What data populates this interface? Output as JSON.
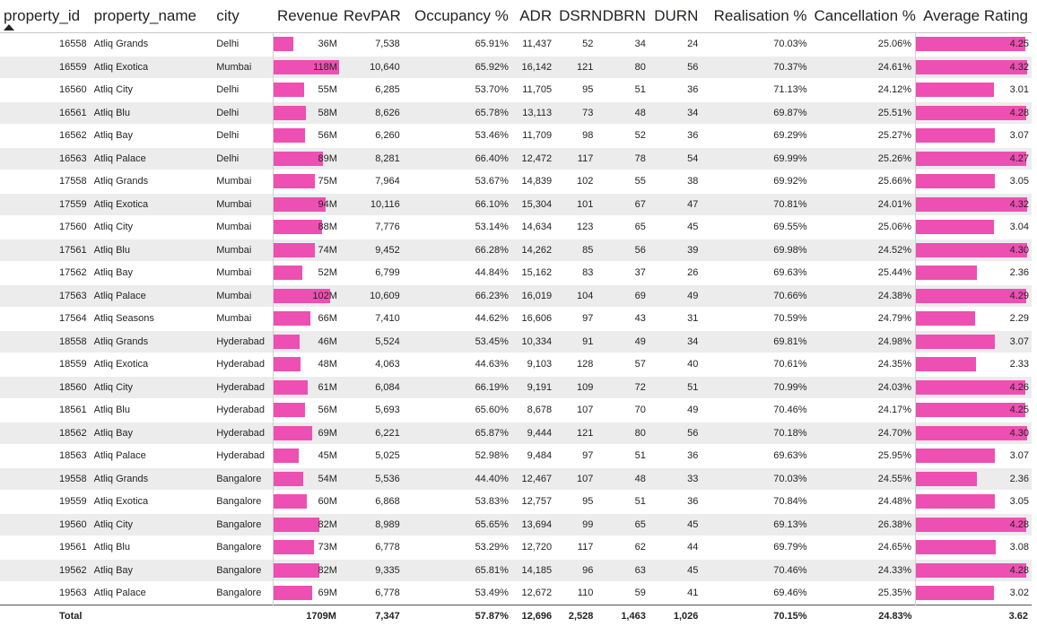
{
  "colors": {
    "bar": "#ee4fb3",
    "stripe": "#ececec"
  },
  "columns": {
    "property_id": "property_id",
    "property_name": "property_name",
    "city": "city",
    "revenue": "Revenue",
    "revpar": "RevPAR",
    "occupancy": "Occupancy %",
    "adr": "ADR",
    "dsrn": "DSRN",
    "dbrn": "DBRN",
    "durn": "DURN",
    "realisation": "Realisation %",
    "cancellation": "Cancellation %",
    "rating": "Average Rating"
  },
  "sort": {
    "column": "property_id",
    "direction": "ascending"
  },
  "rows": [
    {
      "id": "16558",
      "name": "Atliq Grands",
      "city": "Delhi",
      "revenue": "36M",
      "rev_m": 36,
      "revpar": "7,538",
      "occ": "65.91%",
      "adr": "11,437",
      "dsrn": "52",
      "dbrn": "34",
      "durn": "24",
      "real": "70.03%",
      "canc": "25.06%",
      "rating": "4.25"
    },
    {
      "id": "16559",
      "name": "Atliq Exotica",
      "city": "Mumbai",
      "revenue": "118M",
      "rev_m": 118,
      "revpar": "10,640",
      "occ": "65.92%",
      "adr": "16,142",
      "dsrn": "121",
      "dbrn": "80",
      "durn": "56",
      "real": "70.37%",
      "canc": "24.61%",
      "rating": "4.32"
    },
    {
      "id": "16560",
      "name": "Atliq City",
      "city": "Delhi",
      "revenue": "55M",
      "rev_m": 55,
      "revpar": "6,285",
      "occ": "53.70%",
      "adr": "11,705",
      "dsrn": "95",
      "dbrn": "51",
      "durn": "36",
      "real": "71.13%",
      "canc": "24.12%",
      "rating": "3.01"
    },
    {
      "id": "16561",
      "name": "Atliq Blu",
      "city": "Delhi",
      "revenue": "58M",
      "rev_m": 58,
      "revpar": "8,626",
      "occ": "65.78%",
      "adr": "13,113",
      "dsrn": "73",
      "dbrn": "48",
      "durn": "34",
      "real": "69.87%",
      "canc": "25.51%",
      "rating": "4.28"
    },
    {
      "id": "16562",
      "name": "Atliq Bay",
      "city": "Delhi",
      "revenue": "56M",
      "rev_m": 56,
      "revpar": "6,260",
      "occ": "53.46%",
      "adr": "11,709",
      "dsrn": "98",
      "dbrn": "52",
      "durn": "36",
      "real": "69.29%",
      "canc": "25.27%",
      "rating": "3.07"
    },
    {
      "id": "16563",
      "name": "Atliq Palace",
      "city": "Delhi",
      "revenue": "89M",
      "rev_m": 89,
      "revpar": "8,281",
      "occ": "66.40%",
      "adr": "12,472",
      "dsrn": "117",
      "dbrn": "78",
      "durn": "54",
      "real": "69.99%",
      "canc": "25.26%",
      "rating": "4.27"
    },
    {
      "id": "17558",
      "name": "Atliq Grands",
      "city": "Mumbai",
      "revenue": "75M",
      "rev_m": 75,
      "revpar": "7,964",
      "occ": "53.67%",
      "adr": "14,839",
      "dsrn": "102",
      "dbrn": "55",
      "durn": "38",
      "real": "69.92%",
      "canc": "25.66%",
      "rating": "3.05"
    },
    {
      "id": "17559",
      "name": "Atliq Exotica",
      "city": "Mumbai",
      "revenue": "94M",
      "rev_m": 94,
      "revpar": "10,116",
      "occ": "66.10%",
      "adr": "15,304",
      "dsrn": "101",
      "dbrn": "67",
      "durn": "47",
      "real": "70.81%",
      "canc": "24.01%",
      "rating": "4.32"
    },
    {
      "id": "17560",
      "name": "Atliq City",
      "city": "Mumbai",
      "revenue": "88M",
      "rev_m": 88,
      "revpar": "7,776",
      "occ": "53.14%",
      "adr": "14,634",
      "dsrn": "123",
      "dbrn": "65",
      "durn": "45",
      "real": "69.55%",
      "canc": "25.06%",
      "rating": "3.04"
    },
    {
      "id": "17561",
      "name": "Atliq Blu",
      "city": "Mumbai",
      "revenue": "74M",
      "rev_m": 74,
      "revpar": "9,452",
      "occ": "66.28%",
      "adr": "14,262",
      "dsrn": "85",
      "dbrn": "56",
      "durn": "39",
      "real": "69.98%",
      "canc": "24.52%",
      "rating": "4.30"
    },
    {
      "id": "17562",
      "name": "Atliq Bay",
      "city": "Mumbai",
      "revenue": "52M",
      "rev_m": 52,
      "revpar": "6,799",
      "occ": "44.84%",
      "adr": "15,162",
      "dsrn": "83",
      "dbrn": "37",
      "durn": "26",
      "real": "69.63%",
      "canc": "25.44%",
      "rating": "2.36"
    },
    {
      "id": "17563",
      "name": "Atliq Palace",
      "city": "Mumbai",
      "revenue": "102M",
      "rev_m": 102,
      "revpar": "10,609",
      "occ": "66.23%",
      "adr": "16,019",
      "dsrn": "104",
      "dbrn": "69",
      "durn": "49",
      "real": "70.66%",
      "canc": "24.38%",
      "rating": "4.29"
    },
    {
      "id": "17564",
      "name": "Atliq Seasons",
      "city": "Mumbai",
      "revenue": "66M",
      "rev_m": 66,
      "revpar": "7,410",
      "occ": "44.62%",
      "adr": "16,606",
      "dsrn": "97",
      "dbrn": "43",
      "durn": "31",
      "real": "70.59%",
      "canc": "24.79%",
      "rating": "2.29"
    },
    {
      "id": "18558",
      "name": "Atliq Grands",
      "city": "Hyderabad",
      "revenue": "46M",
      "rev_m": 46,
      "revpar": "5,524",
      "occ": "53.45%",
      "adr": "10,334",
      "dsrn": "91",
      "dbrn": "49",
      "durn": "34",
      "real": "69.81%",
      "canc": "24.98%",
      "rating": "3.07"
    },
    {
      "id": "18559",
      "name": "Atliq Exotica",
      "city": "Hyderabad",
      "revenue": "48M",
      "rev_m": 48,
      "revpar": "4,063",
      "occ": "44.63%",
      "adr": "9,103",
      "dsrn": "128",
      "dbrn": "57",
      "durn": "40",
      "real": "70.61%",
      "canc": "24.35%",
      "rating": "2.33"
    },
    {
      "id": "18560",
      "name": "Atliq City",
      "city": "Hyderabad",
      "revenue": "61M",
      "rev_m": 61,
      "revpar": "6,084",
      "occ": "66.19%",
      "adr": "9,191",
      "dsrn": "109",
      "dbrn": "72",
      "durn": "51",
      "real": "70.99%",
      "canc": "24.03%",
      "rating": "4.26"
    },
    {
      "id": "18561",
      "name": "Atliq Blu",
      "city": "Hyderabad",
      "revenue": "56M",
      "rev_m": 56,
      "revpar": "5,693",
      "occ": "65.60%",
      "adr": "8,678",
      "dsrn": "107",
      "dbrn": "70",
      "durn": "49",
      "real": "70.46%",
      "canc": "24.17%",
      "rating": "4.25"
    },
    {
      "id": "18562",
      "name": "Atliq Bay",
      "city": "Hyderabad",
      "revenue": "69M",
      "rev_m": 69,
      "revpar": "6,221",
      "occ": "65.87%",
      "adr": "9,444",
      "dsrn": "121",
      "dbrn": "80",
      "durn": "56",
      "real": "70.18%",
      "canc": "24.70%",
      "rating": "4.30"
    },
    {
      "id": "18563",
      "name": "Atliq Palace",
      "city": "Hyderabad",
      "revenue": "45M",
      "rev_m": 45,
      "revpar": "5,025",
      "occ": "52.98%",
      "adr": "9,484",
      "dsrn": "97",
      "dbrn": "51",
      "durn": "36",
      "real": "69.63%",
      "canc": "25.95%",
      "rating": "3.07"
    },
    {
      "id": "19558",
      "name": "Atliq Grands",
      "city": "Bangalore",
      "revenue": "54M",
      "rev_m": 54,
      "revpar": "5,536",
      "occ": "44.40%",
      "adr": "12,467",
      "dsrn": "107",
      "dbrn": "48",
      "durn": "33",
      "real": "70.03%",
      "canc": "24.55%",
      "rating": "2.36"
    },
    {
      "id": "19559",
      "name": "Atliq Exotica",
      "city": "Bangalore",
      "revenue": "60M",
      "rev_m": 60,
      "revpar": "6,868",
      "occ": "53.83%",
      "adr": "12,757",
      "dsrn": "95",
      "dbrn": "51",
      "durn": "36",
      "real": "70.84%",
      "canc": "24.48%",
      "rating": "3.05"
    },
    {
      "id": "19560",
      "name": "Atliq City",
      "city": "Bangalore",
      "revenue": "82M",
      "rev_m": 82,
      "revpar": "8,989",
      "occ": "65.65%",
      "adr": "13,694",
      "dsrn": "99",
      "dbrn": "65",
      "durn": "45",
      "real": "69.13%",
      "canc": "26.38%",
      "rating": "4.28"
    },
    {
      "id": "19561",
      "name": "Atliq Blu",
      "city": "Bangalore",
      "revenue": "73M",
      "rev_m": 73,
      "revpar": "6,778",
      "occ": "53.29%",
      "adr": "12,720",
      "dsrn": "117",
      "dbrn": "62",
      "durn": "44",
      "real": "69.79%",
      "canc": "24.65%",
      "rating": "3.08"
    },
    {
      "id": "19562",
      "name": "Atliq Bay",
      "city": "Bangalore",
      "revenue": "82M",
      "rev_m": 82,
      "revpar": "9,335",
      "occ": "65.81%",
      "adr": "14,185",
      "dsrn": "96",
      "dbrn": "63",
      "durn": "45",
      "real": "70.46%",
      "canc": "24.33%",
      "rating": "4.28"
    },
    {
      "id": "19563",
      "name": "Atliq Palace",
      "city": "Bangalore",
      "revenue": "69M",
      "rev_m": 69,
      "revpar": "6,778",
      "occ": "53.49%",
      "adr": "12,672",
      "dsrn": "110",
      "dbrn": "59",
      "durn": "41",
      "real": "69.46%",
      "canc": "25.35%",
      "rating": "3.02"
    }
  ],
  "total": {
    "label": "Total",
    "revenue": "1709M",
    "revpar": "7,347",
    "occ": "57.87%",
    "adr": "12,696",
    "dsrn": "2,528",
    "dbrn": "1,463",
    "durn": "1,026",
    "real": "70.15%",
    "canc": "24.83%",
    "rating": "3.62"
  }
}
